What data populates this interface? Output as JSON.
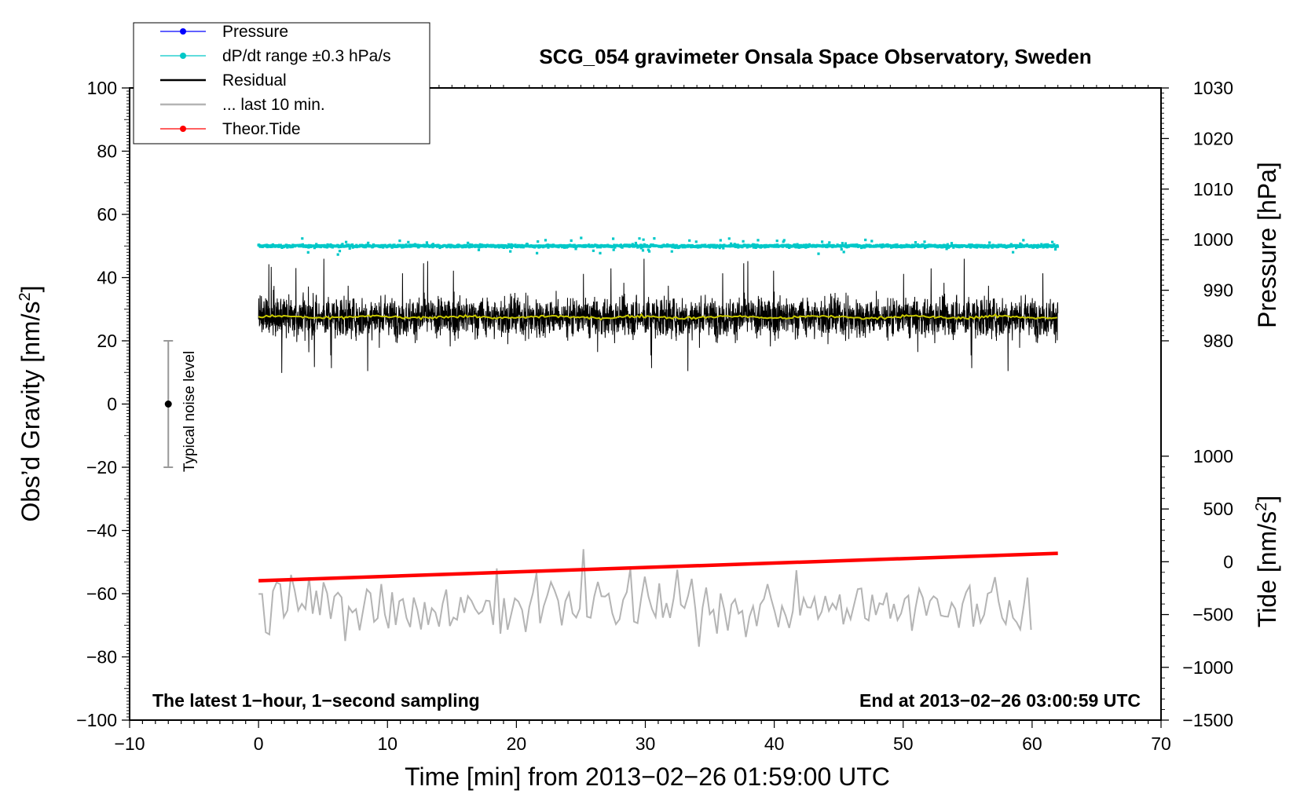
{
  "chart_data": {
    "type": "line",
    "title": "SCG_054 gravimeter Onsala Space Observatory, Sweden",
    "xlabel": "Time [min] from 2013−02−26 01:59:00 UTC",
    "ylabel_left": "Obs’d Gravity [nm/s²]",
    "ylabel_right_top": "Pressure [hPa]",
    "ylabel_right_bottom": "Tide [nm/s²]",
    "xlim": [
      -10,
      70
    ],
    "ylim": [
      -100,
      100
    ],
    "pressure_ylim": [
      980,
      1030
    ],
    "tide_ylim": [
      -1500,
      1000
    ],
    "x_ticks": [
      "−10",
      "0",
      "10",
      "20",
      "30",
      "40",
      "50",
      "60",
      "70"
    ],
    "y_ticks": [
      "100",
      "80",
      "60",
      "40",
      "20",
      "0",
      "−20",
      "−40",
      "−60",
      "−80",
      "−100"
    ],
    "pressure_ticks": [
      "1030",
      "1020",
      "1010",
      "1000",
      "990",
      "980"
    ],
    "tide_ticks": [
      "1000",
      "500",
      "0",
      "−500",
      "−1000",
      "−1500"
    ],
    "legend": [
      {
        "label": "Pressure",
        "color": "#0000ff",
        "marker": true
      },
      {
        "label": "dP/dt range ±0.3 hPa/s",
        "color": "#00c8c8",
        "marker": true
      },
      {
        "label": "Residual",
        "color": "#000000",
        "marker": false
      },
      {
        "label": "... last 10 min.",
        "color": "#b4b4b4",
        "marker": false
      },
      {
        "label": "Theor.Tide",
        "color": "#ff0000",
        "marker": true
      }
    ],
    "annotation_left": "The latest 1−hour, 1−second sampling",
    "annotation_right": "End at 2013−02−26 03:00:59 UTC",
    "noise_label": "Typical noise level",
    "noise_bar": {
      "x": -7,
      "center": 0,
      "half_range": 20
    },
    "series": {
      "dpdt": {
        "name": "dP/dt range",
        "x_range": [
          0,
          62
        ],
        "level": 50,
        "spread": 1.2,
        "color": "#00c8c8"
      },
      "residual": {
        "name": "Residual",
        "x_range": [
          0,
          62
        ],
        "mean": 27.5,
        "min": 1.5,
        "max": 52,
        "color": "#000000"
      },
      "residual_smooth": {
        "name": "Residual (smoothed)",
        "level": 27.5,
        "color": "#c8c800"
      },
      "last10": {
        "name": "... last 10 min.",
        "x_range": [
          0,
          60
        ],
        "mean": -64,
        "min": -83,
        "max": -39,
        "color": "#b4b4b4"
      },
      "tide": {
        "name": "Theor.Tide",
        "x": [
          0,
          62
        ],
        "values_nm_s2": [
          -180,
          80
        ],
        "color": "#ff0000"
      }
    }
  }
}
